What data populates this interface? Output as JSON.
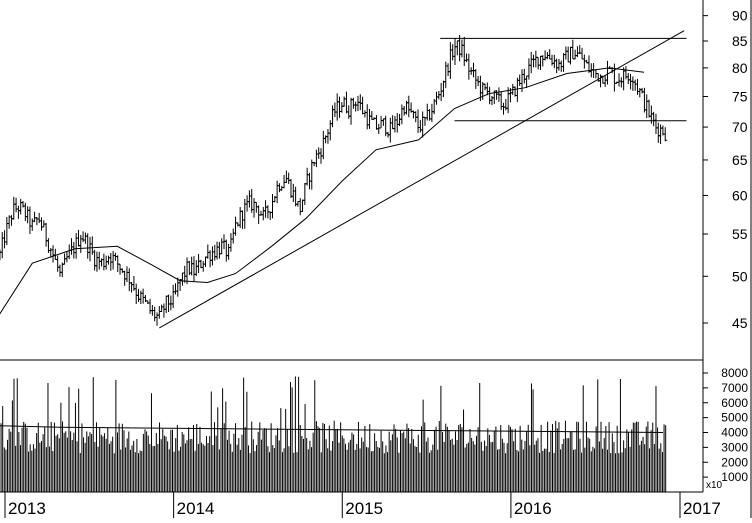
{
  "chart_data": [
    {
      "type": "ohlc",
      "x_ticks": [
        "2013",
        "2014",
        "2015",
        "2016",
        "2017"
      ],
      "y_ticks": [
        45,
        50,
        55,
        60,
        65,
        70,
        75,
        80,
        85,
        90
      ],
      "ylim": [
        41,
        92
      ],
      "log_scale": true,
      "axis_side": "right",
      "weekly_close": [
        {
          "date": "2012-12-21",
          "close": 52.5
        },
        {
          "date": "2013-01-04",
          "close": 55.5
        },
        {
          "date": "2013-01-18",
          "close": 58.0
        },
        {
          "date": "2013-02-01",
          "close": 58.5
        },
        {
          "date": "2013-02-15",
          "close": 57.5
        },
        {
          "date": "2013-03-01",
          "close": 56.0
        },
        {
          "date": "2013-03-15",
          "close": 57.0
        },
        {
          "date": "2013-04-01",
          "close": 54.5
        },
        {
          "date": "2013-04-15",
          "close": 52.5
        },
        {
          "date": "2013-05-01",
          "close": 50.0
        },
        {
          "date": "2013-05-15",
          "close": 52.0
        },
        {
          "date": "2013-06-01",
          "close": 53.5
        },
        {
          "date": "2013-06-15",
          "close": 55.0
        },
        {
          "date": "2013-07-01",
          "close": 53.5
        },
        {
          "date": "2013-07-15",
          "close": 52.0
        },
        {
          "date": "2013-08-01",
          "close": 51.5
        },
        {
          "date": "2013-08-15",
          "close": 52.5
        },
        {
          "date": "2013-09-01",
          "close": 51.5
        },
        {
          "date": "2013-09-15",
          "close": 50.5
        },
        {
          "date": "2013-10-01",
          "close": 49.5
        },
        {
          "date": "2013-10-15",
          "close": 48.0
        },
        {
          "date": "2013-11-01",
          "close": 47.0
        },
        {
          "date": "2013-11-15",
          "close": 46.0
        },
        {
          "date": "2013-12-01",
          "close": 45.5
        },
        {
          "date": "2013-12-15",
          "close": 47.0
        },
        {
          "date": "2014-01-01",
          "close": 47.5
        },
        {
          "date": "2014-01-15",
          "close": 49.5
        },
        {
          "date": "2014-02-01",
          "close": 51.0
        },
        {
          "date": "2014-02-15",
          "close": 50.5
        },
        {
          "date": "2014-03-01",
          "close": 51.5
        },
        {
          "date": "2014-03-15",
          "close": 52.5
        },
        {
          "date": "2014-04-01",
          "close": 53.0
        },
        {
          "date": "2014-04-15",
          "close": 53.5
        },
        {
          "date": "2014-05-01",
          "close": 52.5
        },
        {
          "date": "2014-05-15",
          "close": 56.0
        },
        {
          "date": "2014-06-01",
          "close": 58.0
        },
        {
          "date": "2014-06-15",
          "close": 59.0
        },
        {
          "date": "2014-07-01",
          "close": 58.5
        },
        {
          "date": "2014-07-15",
          "close": 57.0
        },
        {
          "date": "2014-08-01",
          "close": 59.0
        },
        {
          "date": "2014-08-15",
          "close": 61.5
        },
        {
          "date": "2014-09-01",
          "close": 62.5
        },
        {
          "date": "2014-09-15",
          "close": 60.5
        },
        {
          "date": "2014-10-01",
          "close": 58.0
        },
        {
          "date": "2014-10-15",
          "close": 61.5
        },
        {
          "date": "2014-11-01",
          "close": 65.0
        },
        {
          "date": "2014-11-15",
          "close": 66.5
        },
        {
          "date": "2014-12-01",
          "close": 69.5
        },
        {
          "date": "2014-12-15",
          "close": 72.5
        },
        {
          "date": "2015-01-01",
          "close": 74.0
        },
        {
          "date": "2015-01-15",
          "close": 73.0
        },
        {
          "date": "2015-02-01",
          "close": 74.5
        },
        {
          "date": "2015-02-15",
          "close": 72.5
        },
        {
          "date": "2015-03-01",
          "close": 71.0
        },
        {
          "date": "2015-03-15",
          "close": 70.0
        },
        {
          "date": "2015-04-01",
          "close": 70.5
        },
        {
          "date": "2015-04-15",
          "close": 69.5
        },
        {
          "date": "2015-05-01",
          "close": 71.0
        },
        {
          "date": "2015-05-15",
          "close": 73.5
        },
        {
          "date": "2015-06-01",
          "close": 72.0
        },
        {
          "date": "2015-06-15",
          "close": 70.0
        },
        {
          "date": "2015-07-01",
          "close": 71.0
        },
        {
          "date": "2015-07-15",
          "close": 73.0
        },
        {
          "date": "2015-08-01",
          "close": 76.0
        },
        {
          "date": "2015-08-15",
          "close": 80.0
        },
        {
          "date": "2015-09-01",
          "close": 84.0
        },
        {
          "date": "2015-09-15",
          "close": 83.5
        },
        {
          "date": "2015-10-01",
          "close": 80.0
        },
        {
          "date": "2015-10-15",
          "close": 78.0
        },
        {
          "date": "2015-11-01",
          "close": 76.0
        },
        {
          "date": "2015-11-15",
          "close": 75.5
        },
        {
          "date": "2015-12-01",
          "close": 74.5
        },
        {
          "date": "2015-12-15",
          "close": 73.5
        },
        {
          "date": "2016-01-01",
          "close": 75.0
        },
        {
          "date": "2016-01-15",
          "close": 77.0
        },
        {
          "date": "2016-02-01",
          "close": 79.0
        },
        {
          "date": "2016-02-15",
          "close": 80.5
        },
        {
          "date": "2016-03-01",
          "close": 82.0
        },
        {
          "date": "2016-03-15",
          "close": 82.5
        },
        {
          "date": "2016-04-01",
          "close": 81.5
        },
        {
          "date": "2016-04-15",
          "close": 80.5
        },
        {
          "date": "2016-05-01",
          "close": 82.0
        },
        {
          "date": "2016-05-15",
          "close": 83.0
        },
        {
          "date": "2016-06-01",
          "close": 82.0
        },
        {
          "date": "2016-06-15",
          "close": 80.0
        },
        {
          "date": "2016-07-01",
          "close": 79.0
        },
        {
          "date": "2016-07-15",
          "close": 78.5
        },
        {
          "date": "2016-08-01",
          "close": 79.5
        },
        {
          "date": "2016-08-15",
          "close": 78.0
        },
        {
          "date": "2016-09-01",
          "close": 78.5
        },
        {
          "date": "2016-09-15",
          "close": 79.0
        },
        {
          "date": "2016-09-29",
          "close": 77.0
        },
        {
          "date": "2016-10-13",
          "close": 74.5
        },
        {
          "date": "2016-10-27",
          "close": 72.0
        },
        {
          "date": "2016-11-10",
          "close": 70.0
        },
        {
          "date": "2016-11-24",
          "close": 69.5
        },
        {
          "date": "2016-12-01",
          "close": 69.0
        }
      ],
      "moving_average": [
        {
          "date": "2012-12-15",
          "value": 45.5
        },
        {
          "date": "2013-03-01",
          "value": 51.5
        },
        {
          "date": "2013-06-01",
          "value": 53.2
        },
        {
          "date": "2013-09-01",
          "value": 53.5
        },
        {
          "date": "2013-11-15",
          "value": 51.3
        },
        {
          "date": "2014-01-15",
          "value": 49.5
        },
        {
          "date": "2014-03-15",
          "value": 49.3
        },
        {
          "date": "2014-05-15",
          "value": 50.3
        },
        {
          "date": "2014-08-01",
          "value": 53.5
        },
        {
          "date": "2014-10-15",
          "value": 57.0
        },
        {
          "date": "2015-01-01",
          "value": 62.0
        },
        {
          "date": "2015-03-15",
          "value": 66.5
        },
        {
          "date": "2015-06-15",
          "value": 68.0
        },
        {
          "date": "2015-09-01",
          "value": 73.0
        },
        {
          "date": "2015-11-15",
          "value": 75.5
        },
        {
          "date": "2016-02-01",
          "value": 76.5
        },
        {
          "date": "2016-05-01",
          "value": 79.0
        },
        {
          "date": "2016-08-01",
          "value": 80.0
        },
        {
          "date": "2016-10-15",
          "value": 79.2
        }
      ],
      "trendlines": [
        {
          "kind": "support",
          "from": {
            "date": "2013-12-01",
            "value": 44.5
          },
          "to": {
            "date": "2017-01-10",
            "value": 87.0
          }
        },
        {
          "kind": "resistance",
          "level": 85.5,
          "from": "2015-08-01",
          "to": "2017-01-15"
        },
        {
          "kind": "support",
          "level": 71.0,
          "from": "2015-09-01",
          "to": "2017-01-15"
        }
      ]
    },
    {
      "type": "bar",
      "y_ticks": [
        1000,
        2000,
        3000,
        4000,
        5000,
        6000,
        7000,
        8000
      ],
      "ylim": [
        0,
        8800
      ],
      "multiplier_label": "x10",
      "axis_side": "right",
      "volume_ma_level": 4000
    }
  ]
}
